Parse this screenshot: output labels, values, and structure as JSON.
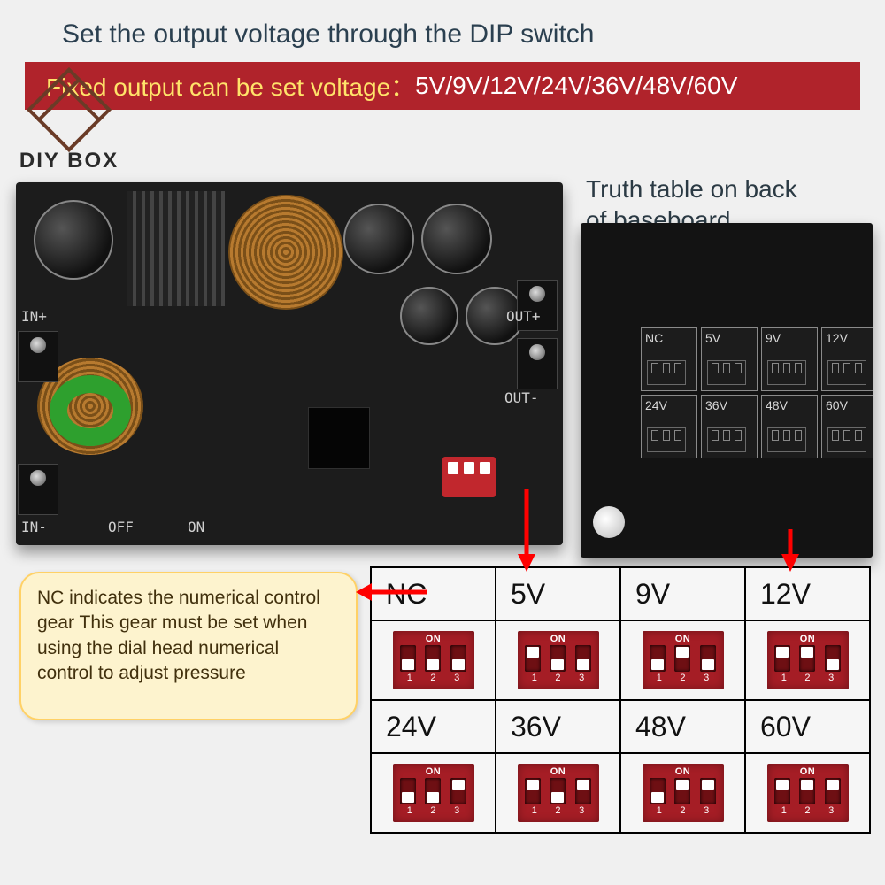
{
  "heading": "Set the output voltage through the DIP switch",
  "banner": {
    "label": "Fixed output can be set voltage：",
    "values": "5V/9V/12V/24V/36V/48V/60V"
  },
  "logo_text": "DIY BOX",
  "back_label_line1": "Truth table on back",
  "back_label_line2": "of baseboard",
  "pcb_labels": {
    "in_plus": "IN+",
    "in_minus": "IN-",
    "out_plus": "OUT+",
    "out_minus": "OUT-",
    "off": "OFF",
    "on": "ON"
  },
  "note": "NC indicates the numerical control gear\nThis gear must be set when using the dial head numerical control to adjust pressure",
  "dip_nums": [
    "1",
    "2",
    "3"
  ],
  "dip_on_label": "ON",
  "truth_table": [
    [
      {
        "label": "NC",
        "positions": [
          "down",
          "down",
          "down"
        ]
      },
      {
        "label": "5V",
        "positions": [
          "up",
          "down",
          "down"
        ]
      },
      {
        "label": "9V",
        "positions": [
          "down",
          "up",
          "down"
        ]
      },
      {
        "label": "12V",
        "positions": [
          "up",
          "up",
          "down"
        ]
      }
    ],
    [
      {
        "label": "24V",
        "positions": [
          "down",
          "down",
          "up"
        ]
      },
      {
        "label": "36V",
        "positions": [
          "up",
          "down",
          "up"
        ]
      },
      {
        "label": "48V",
        "positions": [
          "down",
          "up",
          "up"
        ]
      },
      {
        "label": "60V",
        "positions": [
          "up",
          "up",
          "up"
        ]
      }
    ]
  ],
  "colors": {
    "banner_bg": "#b0232b",
    "banner_label": "#ffe36a",
    "banner_values": "#ffffff",
    "heading": "#2b4050",
    "dip_body": "#a51d25",
    "dip_slot": "#6e0f13",
    "arrow": "#ff0000",
    "note_bg": "#fdf3ce",
    "note_border": "#ffd166"
  }
}
